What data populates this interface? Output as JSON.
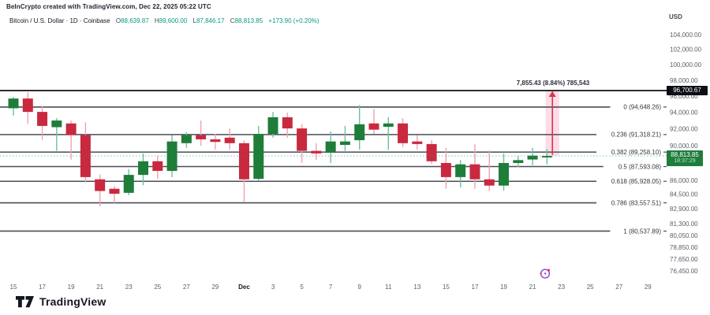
{
  "header": {
    "watermark": "BeInCrypto created with TradingView.com, Dec 22, 2025 05:22 UTC",
    "symbol_line": "Bitcoin / U.S. Dollar · 1D · Coinbase",
    "ohlc": {
      "o_label": "O",
      "o": "88,639.87",
      "h_label": "H",
      "h": "89,600.00",
      "l_label": "L",
      "l": "87,846.17",
      "c_label": "C",
      "c": "88,813.85",
      "change": "+173.90 (+0.20%)"
    }
  },
  "price_axis": {
    "currency": "USD",
    "ticks": [
      {
        "value": 104000,
        "label": "104,000.00"
      },
      {
        "value": 102000,
        "label": "102,000.00"
      },
      {
        "value": 100000,
        "label": "100,000.00"
      },
      {
        "value": 98000,
        "label": "98,000.00"
      },
      {
        "value": 96000,
        "label": "96,000.00"
      },
      {
        "value": 94000,
        "label": "94,000.00"
      },
      {
        "value": 92000,
        "label": "92,000.00"
      },
      {
        "value": 90000,
        "label": "90,000.00"
      },
      {
        "value": 86000,
        "label": "86,000.00"
      },
      {
        "value": 84500,
        "label": "84,500.00"
      },
      {
        "value": 82900,
        "label": "82,900.00"
      },
      {
        "value": 81300,
        "label": "81,300.00"
      },
      {
        "value": 80050,
        "label": "80,050.00"
      },
      {
        "value": 78850,
        "label": "78,850.00"
      },
      {
        "value": 77650,
        "label": "77,650.00"
      },
      {
        "value": 76450,
        "label": "76,450.00"
      }
    ]
  },
  "time_axis": {
    "ticks": [
      {
        "label": "15",
        "day": 0
      },
      {
        "label": "17",
        "day": 2
      },
      {
        "label": "19",
        "day": 4
      },
      {
        "label": "21",
        "day": 6
      },
      {
        "label": "23",
        "day": 8
      },
      {
        "label": "25",
        "day": 10
      },
      {
        "label": "27",
        "day": 12
      },
      {
        "label": "29",
        "day": 14
      },
      {
        "label": "Dec",
        "day": 16,
        "bold": true
      },
      {
        "label": "3",
        "day": 18
      },
      {
        "label": "5",
        "day": 20
      },
      {
        "label": "7",
        "day": 22
      },
      {
        "label": "9",
        "day": 24
      },
      {
        "label": "11",
        "day": 26
      },
      {
        "label": "13",
        "day": 28
      },
      {
        "label": "15",
        "day": 30
      },
      {
        "label": "17",
        "day": 32
      },
      {
        "label": "19",
        "day": 34
      },
      {
        "label": "21",
        "day": 36
      },
      {
        "label": "23",
        "day": 38
      },
      {
        "label": "25",
        "day": 40
      },
      {
        "label": "27",
        "day": 42
      },
      {
        "label": "29",
        "day": 44
      }
    ]
  },
  "fib_levels": [
    {
      "label": "0 (94,648.26)",
      "price": 94648.26
    },
    {
      "label": "0.236 (91,318.21)",
      "price": 91318.21
    },
    {
      "label": "0.382 (89,258.10)",
      "price": 89258.1
    },
    {
      "label": "0.5 (87,593.08)",
      "price": 87593.08
    },
    {
      "label": "0.618 (85,928.05)",
      "price": 85928.05
    },
    {
      "label": "0.786 (83,557.51)",
      "price": 83557.51
    },
    {
      "label": "1 (80,537.89)",
      "price": 80537.89
    }
  ],
  "price_level_line": {
    "label": "96,700.67",
    "price": 96700.67
  },
  "last_price": {
    "label": "88,813.85",
    "countdown": "18:37:29",
    "price": 88813.85
  },
  "measurement": {
    "text": "7,855.43 (8.84%) 785,543",
    "from_price": 88845.24,
    "to_price": 96700.67,
    "day_from": 36.9,
    "day_to": 37.85
  },
  "chart_data": {
    "type": "candlestick",
    "title": "Bitcoin / U.S. Dollar 1D Coinbase",
    "ylabel": "USD",
    "y_scale": "log",
    "ylim": [
      76000,
      104500
    ],
    "columns": [
      "date",
      "open",
      "high",
      "low",
      "close"
    ],
    "candles": [
      [
        "Nov 15",
        94500,
        95900,
        93600,
        95700
      ],
      [
        "Nov 16",
        95700,
        96500,
        92600,
        94050
      ],
      [
        "Nov 17",
        94050,
        94700,
        90700,
        92350
      ],
      [
        "Nov 18",
        92200,
        93300,
        89400,
        93000
      ],
      [
        "Nov 19",
        92650,
        93000,
        88400,
        91250
      ],
      [
        "Nov 20",
        91250,
        92800,
        85800,
        86400
      ],
      [
        "Nov 21",
        86150,
        86700,
        83200,
        84850
      ],
      [
        "Nov 22",
        85100,
        85400,
        83550,
        84550
      ],
      [
        "Nov 23",
        84650,
        87300,
        84400,
        86650
      ],
      [
        "Nov 24",
        86650,
        89100,
        85500,
        88200
      ],
      [
        "Nov 25",
        88200,
        88850,
        86200,
        87100
      ],
      [
        "Nov 26",
        87100,
        91250,
        86400,
        90500
      ],
      [
        "Nov 27",
        90300,
        91600,
        89750,
        91250
      ],
      [
        "Nov 28",
        91250,
        93000,
        90000,
        90750
      ],
      [
        "Nov 29",
        90750,
        91400,
        89550,
        90450
      ],
      [
        "Nov 30",
        90950,
        92050,
        89550,
        90300
      ],
      [
        "Dec 1",
        90300,
        90650,
        83600,
        86150
      ],
      [
        "Dec 2",
        86200,
        92350,
        85950,
        91400
      ],
      [
        "Dec 3",
        91400,
        94050,
        90950,
        93400
      ],
      [
        "Dec 4",
        93400,
        93950,
        90950,
        92050
      ],
      [
        "Dec 5",
        92050,
        92550,
        88000,
        89400
      ],
      [
        "Dec 6",
        89400,
        90300,
        88350,
        89100
      ],
      [
        "Dec 7",
        89200,
        91700,
        88000,
        90500
      ],
      [
        "Dec 8",
        90100,
        92350,
        89400,
        90500
      ],
      [
        "Dec 9",
        90650,
        94900,
        89550,
        92550
      ],
      [
        "Dec 10",
        92650,
        94400,
        91400,
        91900
      ],
      [
        "Dec 11",
        92250,
        93400,
        89500,
        92650
      ],
      [
        "Dec 12",
        92650,
        93300,
        89850,
        90300
      ],
      [
        "Dec 13",
        90500,
        91250,
        89550,
        90200
      ],
      [
        "Dec 14",
        90200,
        90650,
        87900,
        88200
      ],
      [
        "Dec 15",
        88000,
        89750,
        85100,
        86400
      ],
      [
        "Dec 16",
        86400,
        88350,
        85250,
        87850
      ],
      [
        "Dec 17",
        87850,
        90200,
        85100,
        86150
      ],
      [
        "Dec 18",
        86150,
        89450,
        84850,
        85450
      ],
      [
        "Dec 19",
        85450,
        89100,
        84900,
        88000
      ],
      [
        "Dec 20",
        88000,
        88800,
        87550,
        88330
      ],
      [
        "Dec 21",
        88400,
        89750,
        87750,
        88850
      ],
      [
        "Dec 22",
        88639.87,
        89600,
        87846.17,
        88813.85
      ]
    ]
  },
  "footer": {
    "logo_text": "TradingView"
  },
  "colors": {
    "up": "#1e7d39",
    "down": "#c9293f",
    "up_wick": "#70bf9e",
    "down_wick": "#f0a2ae",
    "accent": "#089981",
    "fib_line": "#4a4e57",
    "price_level": "#111111",
    "band_fill": "#f06292",
    "arrow": "#d93450",
    "axis_text": "#5a5e66",
    "dark_text": "#131722",
    "badge_black_bg": "#0c0e15",
    "badge_green_bg": "#1e7d3c"
  }
}
